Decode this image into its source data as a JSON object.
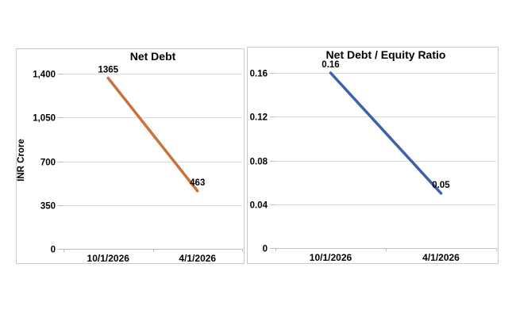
{
  "window": {
    "background": "#ffffff"
  },
  "colors": {
    "net_debt_line": "#c9723c",
    "ratio_line": "#3e61ac",
    "gridline": "#d9d9d9",
    "axis": "#bfbfbf",
    "panel_border": "#c9c9c9",
    "text": "#000000"
  },
  "chart_data": [
    {
      "type": "line",
      "title": "Net Debt",
      "ylabel": "INR Crore",
      "xlabel": "",
      "categories": [
        "10/1/2026",
        "4/1/2026"
      ],
      "values": [
        1365,
        463
      ],
      "data_labels": [
        "1365",
        "463"
      ],
      "ylim": [
        0,
        1400
      ],
      "ytick_values": [
        0,
        350,
        700,
        1050,
        1400
      ],
      "ytick_labels": [
        "0",
        "350",
        "700",
        "1,050",
        "1,400"
      ],
      "grid": "horizontal",
      "legend": "none",
      "line_color": "#c9723c"
    },
    {
      "type": "line",
      "title": "Net Debt / Equity Ratio",
      "ylabel": "",
      "xlabel": "",
      "categories": [
        "10/1/2026",
        "4/1/2026"
      ],
      "values": [
        0.16,
        0.05
      ],
      "data_labels": [
        "0.16",
        "0.05"
      ],
      "ylim": [
        0,
        0.16
      ],
      "ytick_values": [
        0,
        0.04,
        0.08,
        0.12,
        0.16
      ],
      "ytick_labels": [
        "0",
        "0.04",
        "0.08",
        "0.12",
        "0.16"
      ],
      "grid": "horizontal",
      "legend": "none",
      "line_color": "#3e61ac"
    }
  ]
}
